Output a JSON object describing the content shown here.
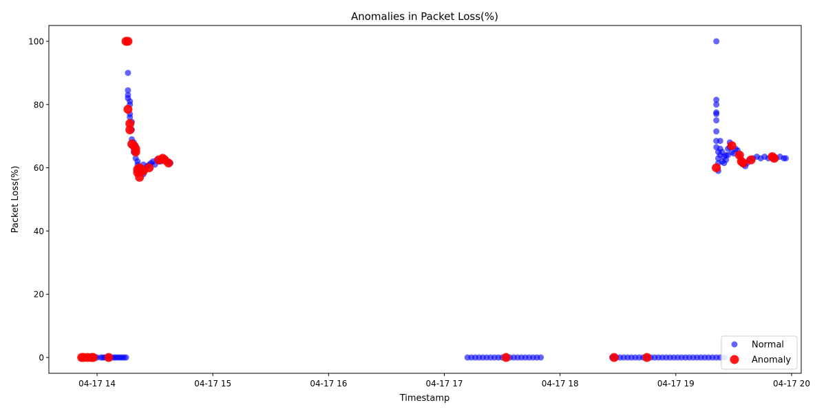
{
  "chart_data": {
    "type": "scatter",
    "title": "Anomalies in Packet Loss(%)",
    "xlabel": "Timestamp",
    "ylabel": "Packet Loss(%)",
    "xlim": [
      "2024-04-17 13:35",
      "2024-04-17 20:05"
    ],
    "ylim": [
      -5,
      105
    ],
    "x_ticks": [
      {
        "t": "2024-04-17 14:00",
        "label": "04-17 14"
      },
      {
        "t": "2024-04-17 15:00",
        "label": "04-17 15"
      },
      {
        "t": "2024-04-17 16:00",
        "label": "04-17 16"
      },
      {
        "t": "2024-04-17 17:00",
        "label": "04-17 17"
      },
      {
        "t": "2024-04-17 18:00",
        "label": "04-17 18"
      },
      {
        "t": "2024-04-17 19:00",
        "label": "04-17 19"
      },
      {
        "t": "2024-04-17 20:00",
        "label": "04-17 20"
      }
    ],
    "y_ticks": [
      0,
      20,
      40,
      60,
      80,
      100
    ],
    "grid": false,
    "legend_position": "lower right",
    "series": [
      {
        "name": "Normal",
        "color": "#0000ff",
        "alpha": 0.6,
        "points": [
          [
            "2024-04-17 13:52",
            0
          ],
          [
            "2024-04-17 13:54",
            0
          ],
          [
            "2024-04-17 13:56",
            0
          ],
          [
            "2024-04-17 13:57",
            0
          ],
          [
            "2024-04-17 13:59",
            0
          ],
          [
            "2024-04-17 14:00",
            0
          ],
          [
            "2024-04-17 14:02",
            0
          ],
          [
            "2024-04-17 14:03",
            0
          ],
          [
            "2024-04-17 14:04",
            0
          ],
          [
            "2024-04-17 14:05",
            0
          ],
          [
            "2024-04-17 14:06",
            0
          ],
          [
            "2024-04-17 14:07",
            0
          ],
          [
            "2024-04-17 14:08",
            0
          ],
          [
            "2024-04-17 14:09",
            0
          ],
          [
            "2024-04-17 14:10",
            0
          ],
          [
            "2024-04-17 14:11",
            0
          ],
          [
            "2024-04-17 14:12",
            0
          ],
          [
            "2024-04-17 14:13",
            0
          ],
          [
            "2024-04-17 14:14",
            0
          ],
          [
            "2024-04-17 14:15",
            0
          ],
          [
            "2024-04-17 14:16",
            90
          ],
          [
            "2024-04-17 14:16",
            84.5
          ],
          [
            "2024-04-17 14:16",
            83
          ],
          [
            "2024-04-17 14:16",
            82
          ],
          [
            "2024-04-17 14:17",
            81
          ],
          [
            "2024-04-17 14:17",
            80
          ],
          [
            "2024-04-17 14:17",
            77
          ],
          [
            "2024-04-17 14:17",
            76
          ],
          [
            "2024-04-17 14:18",
            74.5
          ],
          [
            "2024-04-17 14:18",
            72
          ],
          [
            "2024-04-17 14:18",
            69
          ],
          [
            "2024-04-17 14:19",
            68
          ],
          [
            "2024-04-17 14:19",
            66
          ],
          [
            "2024-04-17 14:19",
            65
          ],
          [
            "2024-04-17 14:20",
            67
          ],
          [
            "2024-04-17 14:20",
            65
          ],
          [
            "2024-04-17 14:20",
            63
          ],
          [
            "2024-04-17 14:21",
            62
          ],
          [
            "2024-04-17 14:21",
            61
          ],
          [
            "2024-04-17 14:22",
            60
          ],
          [
            "2024-04-17 14:22",
            59
          ],
          [
            "2024-04-17 14:23",
            58.5
          ],
          [
            "2024-04-17 14:24",
            58
          ],
          [
            "2024-04-17 14:24",
            61
          ],
          [
            "2024-04-17 14:25",
            59.5
          ],
          [
            "2024-04-17 14:26",
            60.5
          ],
          [
            "2024-04-17 14:27",
            61
          ],
          [
            "2024-04-17 14:28",
            61.5
          ],
          [
            "2024-04-17 14:29",
            62
          ],
          [
            "2024-04-17 14:30",
            61
          ],
          [
            "2024-04-17 14:31",
            62.5
          ],
          [
            "2024-04-17 14:32",
            62
          ],
          [
            "2024-04-17 14:33",
            62
          ],
          [
            "2024-04-17 14:34",
            62.5
          ],
          [
            "2024-04-17 14:35",
            63
          ],
          [
            "2024-04-17 14:36",
            62
          ],
          [
            "2024-04-17 14:37",
            62
          ],
          [
            "2024-04-17 14:38",
            61.5
          ],
          [
            "2024-04-17 17:12",
            0
          ],
          [
            "2024-04-17 17:14",
            0
          ],
          [
            "2024-04-17 17:16",
            0
          ],
          [
            "2024-04-17 17:18",
            0
          ],
          [
            "2024-04-17 17:20",
            0
          ],
          [
            "2024-04-17 17:22",
            0
          ],
          [
            "2024-04-17 17:24",
            0
          ],
          [
            "2024-04-17 17:26",
            0
          ],
          [
            "2024-04-17 17:28",
            0
          ],
          [
            "2024-04-17 17:30",
            0
          ],
          [
            "2024-04-17 17:32",
            0
          ],
          [
            "2024-04-17 17:34",
            0
          ],
          [
            "2024-04-17 17:36",
            0
          ],
          [
            "2024-04-17 17:38",
            0
          ],
          [
            "2024-04-17 17:40",
            0
          ],
          [
            "2024-04-17 17:42",
            0
          ],
          [
            "2024-04-17 17:44",
            0
          ],
          [
            "2024-04-17 17:46",
            0
          ],
          [
            "2024-04-17 17:48",
            0
          ],
          [
            "2024-04-17 17:50",
            0
          ],
          [
            "2024-04-17 18:27",
            0
          ],
          [
            "2024-04-17 18:29",
            0
          ],
          [
            "2024-04-17 18:31",
            0
          ],
          [
            "2024-04-17 18:33",
            0
          ],
          [
            "2024-04-17 18:35",
            0
          ],
          [
            "2024-04-17 18:37",
            0
          ],
          [
            "2024-04-17 18:39",
            0
          ],
          [
            "2024-04-17 18:41",
            0
          ],
          [
            "2024-04-17 18:43",
            0
          ],
          [
            "2024-04-17 18:45",
            0
          ],
          [
            "2024-04-17 18:47",
            0
          ],
          [
            "2024-04-17 18:49",
            0
          ],
          [
            "2024-04-17 18:51",
            0
          ],
          [
            "2024-04-17 18:53",
            0
          ],
          [
            "2024-04-17 18:55",
            0
          ],
          [
            "2024-04-17 18:57",
            0
          ],
          [
            "2024-04-17 18:59",
            0
          ],
          [
            "2024-04-17 19:01",
            0
          ],
          [
            "2024-04-17 19:03",
            0
          ],
          [
            "2024-04-17 19:05",
            0
          ],
          [
            "2024-04-17 19:07",
            0
          ],
          [
            "2024-04-17 19:09",
            0
          ],
          [
            "2024-04-17 19:11",
            0
          ],
          [
            "2024-04-17 19:13",
            0
          ],
          [
            "2024-04-17 19:15",
            0
          ],
          [
            "2024-04-17 19:17",
            0
          ],
          [
            "2024-04-17 19:19",
            0
          ],
          [
            "2024-04-17 19:21",
            0
          ],
          [
            "2024-04-17 19:23",
            0
          ],
          [
            "2024-04-17 19:25",
            0
          ],
          [
            "2024-04-17 19:21",
            100
          ],
          [
            "2024-04-17 19:21",
            81.5
          ],
          [
            "2024-04-17 19:21",
            80
          ],
          [
            "2024-04-17 19:21",
            77.5
          ],
          [
            "2024-04-17 19:21",
            77
          ],
          [
            "2024-04-17 19:21",
            75
          ],
          [
            "2024-04-17 19:21",
            71.5
          ],
          [
            "2024-04-17 19:21",
            68.5
          ],
          [
            "2024-04-17 19:21",
            66.5
          ],
          [
            "2024-04-17 19:22",
            65
          ],
          [
            "2024-04-17 19:22",
            63
          ],
          [
            "2024-04-17 19:22",
            61.5
          ],
          [
            "2024-04-17 19:22",
            59
          ],
          [
            "2024-04-17 19:23",
            68.5
          ],
          [
            "2024-04-17 19:23",
            66
          ],
          [
            "2024-04-17 19:23",
            64
          ],
          [
            "2024-04-17 19:24",
            62
          ],
          [
            "2024-04-17 19:24",
            65
          ],
          [
            "2024-04-17 19:25",
            63.5
          ],
          [
            "2024-04-17 19:25",
            61.5
          ],
          [
            "2024-04-17 19:26",
            64
          ],
          [
            "2024-04-17 19:26",
            62.5
          ],
          [
            "2024-04-17 19:27",
            66
          ],
          [
            "2024-04-17 19:27",
            64
          ],
          [
            "2024-04-17 19:28",
            68
          ],
          [
            "2024-04-17 19:28",
            66.5
          ],
          [
            "2024-04-17 19:29",
            65
          ],
          [
            "2024-04-17 19:30",
            64.5
          ],
          [
            "2024-04-17 19:31",
            66
          ],
          [
            "2024-04-17 19:32",
            65.5
          ],
          [
            "2024-04-17 19:33",
            64
          ],
          [
            "2024-04-17 19:34",
            62
          ],
          [
            "2024-04-17 19:35",
            61
          ],
          [
            "2024-04-17 19:36",
            60.5
          ],
          [
            "2024-04-17 19:37",
            61.5
          ],
          [
            "2024-04-17 19:38",
            62.5
          ],
          [
            "2024-04-17 19:40",
            63
          ],
          [
            "2024-04-17 19:42",
            63.5
          ],
          [
            "2024-04-17 19:44",
            63
          ],
          [
            "2024-04-17 19:46",
            63.5
          ],
          [
            "2024-04-17 19:48",
            63
          ],
          [
            "2024-04-17 19:50",
            63.5
          ],
          [
            "2024-04-17 19:52",
            63
          ],
          [
            "2024-04-17 19:54",
            63.5
          ],
          [
            "2024-04-17 19:56",
            63
          ],
          [
            "2024-04-17 19:57",
            63
          ]
        ]
      },
      {
        "name": "Anomaly",
        "color": "#ff0000",
        "alpha": 0.9,
        "points": [
          [
            "2024-04-17 13:52",
            0
          ],
          [
            "2024-04-17 13:53",
            0
          ],
          [
            "2024-04-17 13:55",
            0
          ],
          [
            "2024-04-17 13:57",
            0
          ],
          [
            "2024-04-17 13:58",
            0
          ],
          [
            "2024-04-17 14:06",
            0
          ],
          [
            "2024-04-17 14:15",
            100
          ],
          [
            "2024-04-17 14:16",
            100
          ],
          [
            "2024-04-17 14:16",
            78.5
          ],
          [
            "2024-04-17 14:17",
            74
          ],
          [
            "2024-04-17 14:17",
            72
          ],
          [
            "2024-04-17 14:18",
            67.5
          ],
          [
            "2024-04-17 14:19",
            67
          ],
          [
            "2024-04-17 14:20",
            66
          ],
          [
            "2024-04-17 14:20",
            65
          ],
          [
            "2024-04-17 14:21",
            59.5
          ],
          [
            "2024-04-17 14:21",
            58.5
          ],
          [
            "2024-04-17 14:22",
            60
          ],
          [
            "2024-04-17 14:22",
            57
          ],
          [
            "2024-04-17 14:23",
            59.5
          ],
          [
            "2024-04-17 14:24",
            59
          ],
          [
            "2024-04-17 14:27",
            60
          ],
          [
            "2024-04-17 14:32",
            62.5
          ],
          [
            "2024-04-17 14:34",
            63
          ],
          [
            "2024-04-17 14:35",
            62.5
          ],
          [
            "2024-04-17 14:37",
            61.5
          ],
          [
            "2024-04-17 17:32",
            0
          ],
          [
            "2024-04-17 18:28",
            0
          ],
          [
            "2024-04-17 18:45",
            0
          ],
          [
            "2024-04-17 19:21",
            60
          ],
          [
            "2024-04-17 19:29",
            67
          ],
          [
            "2024-04-17 19:33",
            64
          ],
          [
            "2024-04-17 19:34",
            62
          ],
          [
            "2024-04-17 19:35",
            61.5
          ],
          [
            "2024-04-17 19:39",
            62.5
          ],
          [
            "2024-04-17 19:50",
            63.5
          ],
          [
            "2024-04-17 19:51",
            63
          ]
        ]
      }
    ]
  }
}
